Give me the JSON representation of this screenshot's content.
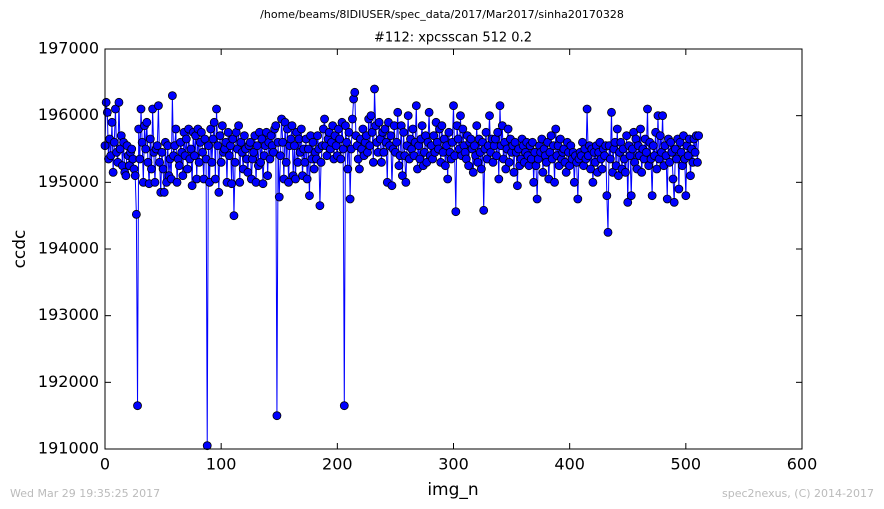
{
  "chart_data": {
    "type": "line",
    "suptitle": "/home/beams/8IDIUSER/spec_data/2017/Mar2017/sinha20170328",
    "title": "#112: xpcsscan 512 0.2",
    "xlabel": "img_n",
    "ylabel": "ccdc",
    "footer_left": "Wed Mar 29 19:35:25 2017",
    "footer_right": "spec2nexus, (C) 2014-2017",
    "xlim": [
      0,
      600
    ],
    "xticks": [
      0,
      100,
      200,
      300,
      400,
      500,
      600
    ],
    "ylim": [
      191000,
      197000
    ],
    "yticks": [
      191000,
      192000,
      193000,
      194000,
      195000,
      196000,
      197000
    ],
    "grid": false,
    "x": [
      0,
      1,
      2,
      3,
      4,
      5,
      6,
      7,
      8,
      9,
      10,
      11,
      12,
      13,
      14,
      15,
      16,
      17,
      18,
      19,
      20,
      21,
      22,
      23,
      24,
      25,
      26,
      27,
      28,
      29,
      30,
      31,
      32,
      33,
      34,
      35,
      36,
      37,
      38,
      39,
      40,
      41,
      42,
      43,
      44,
      45,
      46,
      47,
      48,
      49,
      50,
      51,
      52,
      53,
      54,
      55,
      56,
      57,
      58,
      59,
      60,
      61,
      62,
      63,
      64,
      65,
      66,
      67,
      68,
      69,
      70,
      71,
      72,
      73,
      74,
      75,
      76,
      77,
      78,
      79,
      80,
      81,
      82,
      83,
      84,
      85,
      86,
      87,
      88,
      89,
      90,
      91,
      92,
      93,
      94,
      95,
      96,
      97,
      98,
      99,
      100,
      101,
      102,
      103,
      104,
      105,
      106,
      107,
      108,
      109,
      110,
      111,
      112,
      113,
      114,
      115,
      116,
      117,
      118,
      119,
      120,
      121,
      122,
      123,
      124,
      125,
      126,
      127,
      128,
      129,
      130,
      131,
      132,
      133,
      134,
      135,
      136,
      137,
      138,
      139,
      140,
      141,
      142,
      143,
      144,
      145,
      146,
      147,
      148,
      149,
      150,
      151,
      152,
      153,
      154,
      155,
      156,
      157,
      158,
      159,
      160,
      161,
      162,
      163,
      164,
      165,
      166,
      167,
      168,
      169,
      170,
      171,
      172,
      173,
      174,
      175,
      176,
      177,
      178,
      179,
      180,
      181,
      182,
      183,
      184,
      185,
      186,
      187,
      188,
      189,
      190,
      191,
      192,
      193,
      194,
      195,
      196,
      197,
      198,
      199,
      200,
      201,
      202,
      203,
      204,
      205,
      206,
      207,
      208,
      209,
      210,
      211,
      212,
      213,
      214,
      215,
      216,
      217,
      218,
      219,
      220,
      221,
      222,
      223,
      224,
      225,
      226,
      227,
      228,
      229,
      230,
      231,
      232,
      233,
      234,
      235,
      236,
      237,
      238,
      239,
      240,
      241,
      242,
      243,
      244,
      245,
      246,
      247,
      248,
      249,
      250,
      251,
      252,
      253,
      254,
      255,
      256,
      257,
      258,
      259,
      260,
      261,
      262,
      263,
      264,
      265,
      266,
      267,
      268,
      269,
      270,
      271,
      272,
      273,
      274,
      275,
      276,
      277,
      278,
      279,
      280,
      281,
      282,
      283,
      284,
      285,
      286,
      287,
      288,
      289,
      290,
      291,
      292,
      293,
      294,
      295,
      296,
      297,
      298,
      299,
      300,
      301,
      302,
      303,
      304,
      305,
      306,
      307,
      308,
      309,
      310,
      311,
      312,
      313,
      314,
      315,
      316,
      317,
      318,
      319,
      320,
      321,
      322,
      323,
      324,
      325,
      326,
      327,
      328,
      329,
      330,
      331,
      332,
      333,
      334,
      335,
      336,
      337,
      338,
      339,
      340,
      341,
      342,
      343,
      344,
      345,
      346,
      347,
      348,
      349,
      350,
      351,
      352,
      353,
      354,
      355,
      356,
      357,
      358,
      359,
      360,
      361,
      362,
      363,
      364,
      365,
      366,
      367,
      368,
      369,
      370,
      371,
      372,
      373,
      374,
      375,
      376,
      377,
      378,
      379,
      380,
      381,
      382,
      383,
      384,
      385,
      386,
      387,
      388,
      389,
      390,
      391,
      392,
      393,
      394,
      395,
      396,
      397,
      398,
      399,
      400,
      401,
      402,
      403,
      404,
      405,
      406,
      407,
      408,
      409,
      410,
      411,
      412,
      413,
      414,
      415,
      416,
      417,
      418,
      419,
      420,
      421,
      422,
      423,
      424,
      425,
      426,
      427,
      428,
      429,
      430,
      431,
      432,
      433,
      434,
      435,
      436,
      437,
      438,
      439,
      440,
      441,
      442,
      443,
      444,
      445,
      446,
      447,
      448,
      449,
      450,
      451,
      452,
      453,
      454,
      455,
      456,
      457,
      458,
      459,
      460,
      461,
      462,
      463,
      464,
      465,
      466,
      467,
      468,
      469,
      470,
      471,
      472,
      473,
      474,
      475,
      476,
      477,
      478,
      479,
      480,
      481,
      482,
      483,
      484,
      485,
      486,
      487,
      488,
      489,
      490,
      491,
      492,
      493,
      494,
      495,
      496,
      497,
      498,
      499,
      500,
      501,
      502,
      503,
      504,
      505,
      506,
      507,
      508,
      509,
      510,
      511
    ],
    "series": [
      {
        "name": "ccdc",
        "color": "#0000ff",
        "values": [
          195550,
          196200,
          196050,
          195350,
          195650,
          195400,
          195900,
          195150,
          195600,
          196100,
          195450,
          195300,
          196200,
          195500,
          195700,
          195250,
          195600,
          195150,
          195100,
          195550,
          195400,
          195250,
          195450,
          195500,
          195350,
          195200,
          195100,
          194520,
          191650,
          195800,
          195350,
          196100,
          195600,
          195000,
          195850,
          195500,
          195900,
          195300,
          194980,
          195650,
          195200,
          196100,
          195450,
          195000,
          195500,
          195550,
          196150,
          195300,
          194850,
          195450,
          195200,
          194850,
          195600,
          195000,
          195550,
          195100,
          195350,
          195050,
          196300,
          195400,
          195550,
          195800,
          195000,
          195350,
          195250,
          195600,
          195450,
          195100,
          195750,
          195400,
          195650,
          195200,
          195800,
          195350,
          195500,
          194950,
          195750,
          195400,
          195700,
          195050,
          195800,
          195300,
          195600,
          195750,
          195450,
          195050,
          195650,
          195350,
          191050,
          195550,
          195000,
          195800,
          195300,
          195650,
          195900,
          195050,
          196100,
          195550,
          194850,
          195700,
          195300,
          195850,
          195450,
          195500,
          195600,
          195000,
          195750,
          195400,
          195550,
          194980,
          195650,
          194500,
          195300,
          195750,
          195500,
          195850,
          195000,
          195600,
          195450,
          195200,
          195700,
          195500,
          195350,
          195150,
          195550,
          195600,
          195050,
          195350,
          195450,
          195700,
          195000,
          195550,
          195250,
          195750,
          195300,
          195650,
          194980,
          195400,
          195550,
          195750,
          195100,
          195600,
          195350,
          195700,
          195550,
          195450,
          195800,
          195850,
          191500,
          195600,
          194780,
          195400,
          195950,
          195600,
          195050,
          195900,
          195300,
          195800,
          195000,
          195550,
          195650,
          195850,
          195100,
          195550,
          195050,
          195750,
          195300,
          195650,
          195450,
          195800,
          195100,
          195500,
          195300,
          195650,
          195050,
          195500,
          194800,
          195700,
          195350,
          195600,
          195200,
          195450,
          195350,
          195700,
          195500,
          194650,
          195300,
          195550,
          195800,
          195950,
          195550,
          195400,
          195650,
          195750,
          195500,
          195600,
          195850,
          195350,
          195700,
          195550,
          195400,
          195800,
          195650,
          195350,
          195900,
          195500,
          191650,
          195850,
          195600,
          195200,
          195750,
          194750,
          195500,
          195950,
          196250,
          196350,
          195700,
          195550,
          195350,
          195200,
          195650,
          195500,
          195800,
          195400,
          195600,
          195700,
          195450,
          195950,
          195550,
          196000,
          195750,
          195300,
          196400,
          195850,
          195600,
          195450,
          195900,
          195650,
          195300,
          195750,
          195450,
          195800,
          195600,
          195000,
          195900,
          195550,
          195700,
          194950,
          195500,
          195850,
          195450,
          195600,
          196050,
          195250,
          195400,
          195850,
          195100,
          195750,
          195400,
          195000,
          195550,
          196000,
          195350,
          195650,
          195500,
          195800,
          195400,
          195600,
          196150,
          195200,
          195550,
          195350,
          195650,
          195850,
          195250,
          195450,
          195700,
          195300,
          195600,
          196050,
          195400,
          195550,
          195350,
          195700,
          195450,
          195900,
          195600,
          195500,
          195800,
          195300,
          195850,
          195450,
          195650,
          195250,
          195550,
          195050,
          195750,
          195450,
          195350,
          195600,
          196150,
          195400,
          194560,
          195850,
          195650,
          195500,
          196000,
          195400,
          195800,
          195550,
          195450,
          195350,
          195700,
          195250,
          195600,
          195650,
          195500,
          195150,
          195550,
          195400,
          195850,
          195300,
          195650,
          195450,
          195200,
          195600,
          194580,
          195500,
          195750,
          195350,
          195550,
          196000,
          195450,
          195650,
          195300,
          195550,
          195650,
          195400,
          195750,
          195050,
          196150,
          195550,
          195850,
          195350,
          195600,
          195200,
          195500,
          195800,
          195300,
          195650,
          195450,
          195550,
          195150,
          195600,
          195450,
          194950,
          195500,
          195250,
          195350,
          195650,
          195550,
          195300,
          195450,
          195600,
          195400,
          195250,
          195550,
          195350,
          195600,
          195000,
          195450,
          195250,
          194750,
          195350,
          195550,
          195450,
          195650,
          195150,
          195500,
          195400,
          195300,
          195600,
          195050,
          195450,
          195700,
          195350,
          195550,
          195000,
          195800,
          195400,
          195550,
          195250,
          195650,
          195350,
          195450,
          195500,
          195300,
          195150,
          195600,
          195450,
          195250,
          195550,
          195350,
          195450,
          195000,
          195400,
          195300,
          194750,
          195350,
          195450,
          195400,
          195600,
          195250,
          195500,
          195350,
          196100,
          195400,
          195550,
          195200,
          195500,
          195000,
          195450,
          195300,
          195550,
          195150,
          195450,
          195600,
          195350,
          195200,
          195500,
          195400,
          195550,
          194800,
          194250,
          195550,
          195350,
          196050,
          195150,
          195500,
          195600,
          195250,
          195800,
          195100,
          195450,
          195600,
          195200,
          195500,
          195350,
          195150,
          195700,
          194700,
          195550,
          195400,
          194800,
          195500,
          195750,
          195300,
          195650,
          195200,
          195550,
          195400,
          195800,
          195150,
          195500,
          195350,
          195650,
          195450,
          196100,
          195250,
          195600,
          195350,
          194800,
          195550,
          195400,
          195750,
          195200,
          196000,
          195350,
          195700,
          195450,
          196000,
          195250,
          195550,
          195400,
          194750,
          195650,
          195300,
          195600,
          195450,
          195050,
          194700,
          195500,
          195350,
          195650,
          194900,
          195600,
          195450,
          195250,
          195700,
          195350,
          194800,
          195550,
          195400,
          195650,
          195100,
          195500,
          195300,
          195650,
          195450,
          195700,
          195300,
          195700
        ]
      }
    ]
  }
}
